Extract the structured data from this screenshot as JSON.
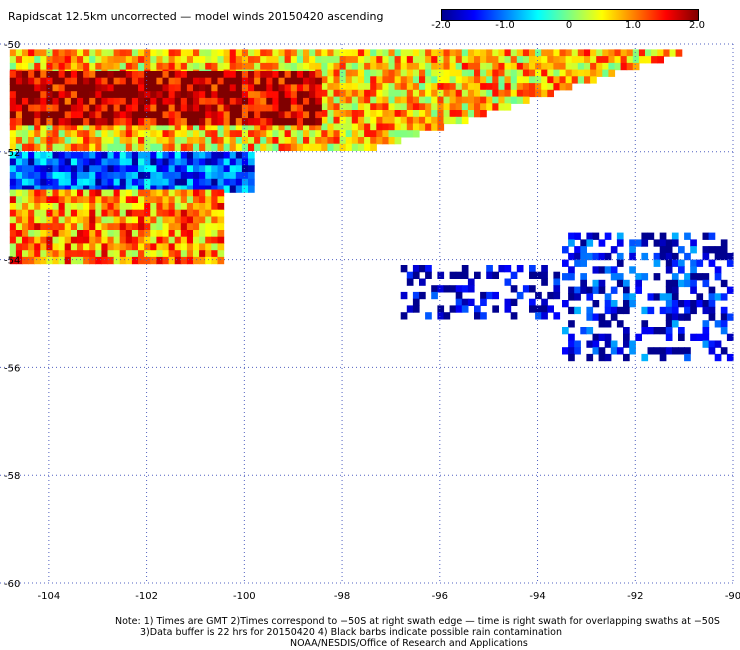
{
  "title": "Rapidscat 12.5km uncorrected — model winds 20150420 ascending",
  "colorbar": {
    "ticks": [
      "-2.0",
      "-1.0",
      "0",
      "1.0",
      "2.0"
    ],
    "tick_values": [
      -2.0,
      -1.0,
      0,
      1.0,
      2.0
    ],
    "colors": [
      "#00008f",
      "#0000ff",
      "#0080ff",
      "#00ffff",
      "#80ff80",
      "#ffff00",
      "#ff8000",
      "#ff0000",
      "#800000"
    ]
  },
  "notes": {
    "line1": "Note: 1) Times are GMT 2)Times correspond to −50S at right swath edge — time is right swath for overlapping swaths at −50S",
    "line2": "3)Data buffer is 22 hrs for 20150420 4) Black barbs indicate possible rain contamination",
    "line3": "NOAA/NESDIS/Office of Research and Applications"
  },
  "chart_data": {
    "type": "heatmap",
    "title": "Rapidscat 12.5km uncorrected — model winds 20150420 ascending",
    "xlabel": "",
    "ylabel": "",
    "x_ticks": [
      "-104",
      "-102",
      "-100",
      "-98",
      "-96",
      "-94",
      "-92",
      "-90"
    ],
    "x_tick_values": [
      -104,
      -102,
      -100,
      -98,
      -96,
      -94,
      -92,
      -90
    ],
    "y_ticks": [
      "-50",
      "-52",
      "-54",
      "-56",
      "-58",
      "-60"
    ],
    "y_tick_values": [
      -50,
      -52,
      -54,
      -56,
      -58,
      -60
    ],
    "xlim": [
      -105,
      -90
    ],
    "ylim": [
      -60,
      -50
    ],
    "vrange": [
      -2.0,
      2.0
    ],
    "grid": true,
    "regions": [
      {
        "name": "",
        "lon": [
          -104.8,
          -91.1
        ],
        "lat": [
          -50.1,
          -51.9
        ],
        "value": 0.7
      },
      {
        "name": "",
        "lon": [
          -104.8,
          -98.5
        ],
        "lat": [
          -50.5,
          -51.5
        ],
        "value": 1.8
      },
      {
        "name": "",
        "lon": [
          -104.8,
          -99.8
        ],
        "lat": [
          -52.0,
          -52.7
        ],
        "value": -1.2
      },
      {
        "name": "",
        "lon": [
          -104.8,
          -100.5
        ],
        "lat": [
          -52.7,
          -54.0
        ],
        "value": 0.9
      },
      {
        "name": "",
        "lon": [
          -93.5,
          -90.1
        ],
        "lat": [
          -53.5,
          -55.8
        ],
        "value": -1.6
      },
      {
        "name": "",
        "lon": [
          -96.8,
          -93.6
        ],
        "lat": [
          -54.1,
          -55.0
        ],
        "value": -1.9
      }
    ]
  }
}
